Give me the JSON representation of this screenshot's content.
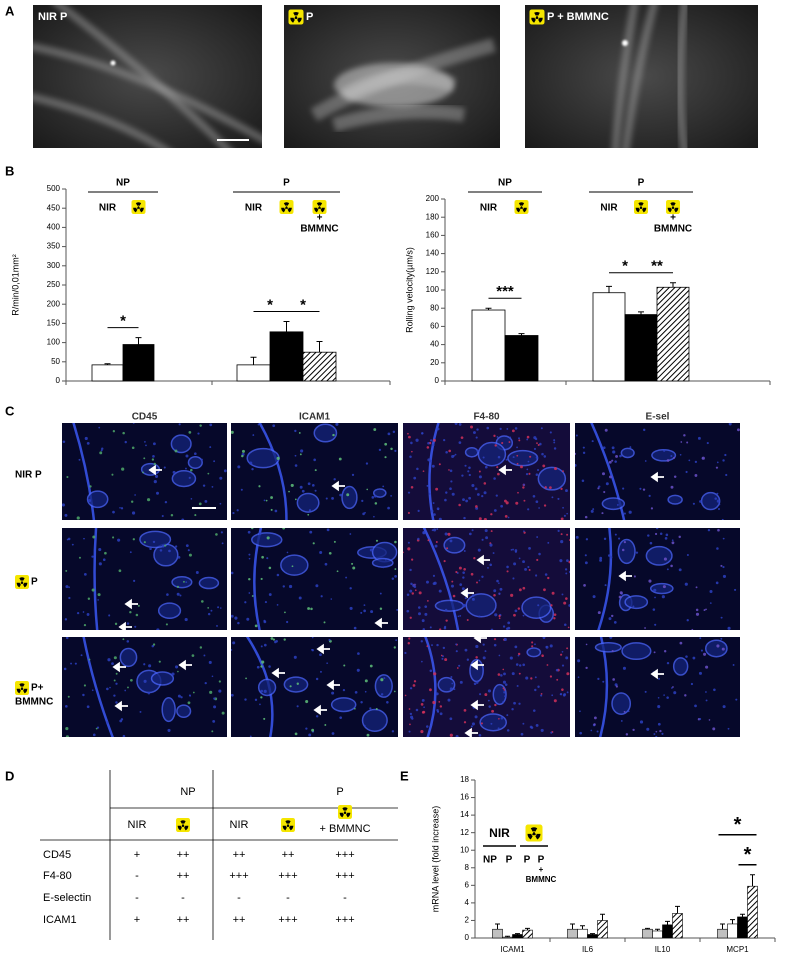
{
  "panel_labels": [
    "A",
    "B",
    "C",
    "D",
    "E"
  ],
  "panel_a": {
    "images": [
      {
        "label": "NIR P",
        "icon": false
      },
      {
        "label": "P",
        "icon": true
      },
      {
        "label": "P + BMMNC",
        "icon": true
      }
    ]
  },
  "chart_data": [
    {
      "type": "bar",
      "y_label": "R/min/0,01mm²",
      "ylim": [
        0,
        500
      ],
      "yticks": [
        0,
        50,
        100,
        150,
        200,
        250,
        300,
        350,
        400,
        450,
        500
      ],
      "groups": [
        {
          "label": "NP",
          "bar_labels": [
            "NIR",
            null
          ],
          "values": [
            42,
            95
          ],
          "errors": [
            3,
            18
          ],
          "fills": [
            "#ffffff",
            "#000000"
          ]
        },
        {
          "label": "P",
          "bar_labels": [
            "NIR",
            null,
            null
          ],
          "note": {
            "bar": 2,
            "lines": [
              "+",
              "BMMNC"
            ]
          },
          "values": [
            42,
            128,
            75
          ],
          "errors": [
            20,
            27,
            28
          ],
          "fills": [
            "#ffffff",
            "#000000",
            "hatched"
          ]
        }
      ],
      "brackets": [
        {
          "group": 0,
          "bars": [
            0,
            1
          ],
          "label": "*"
        },
        {
          "group": 1,
          "bars": [
            0,
            1
          ],
          "label": "*"
        },
        {
          "group": 1,
          "bars": [
            1,
            2
          ],
          "label": "*"
        }
      ]
    },
    {
      "type": "bar",
      "y_label": "Rolling velocity(µm/s)",
      "ylim": [
        0,
        200
      ],
      "yticks": [
        0,
        20,
        40,
        60,
        80,
        100,
        120,
        140,
        160,
        180,
        200
      ],
      "groups": [
        {
          "label": "NP",
          "bar_labels": [
            "NIR",
            null
          ],
          "values": [
            78,
            50
          ],
          "errors": [
            2,
            2
          ],
          "fills": [
            "#ffffff",
            "#000000"
          ]
        },
        {
          "label": "P",
          "bar_labels": [
            "NIR",
            null,
            null
          ],
          "note": {
            "bar": 2,
            "lines": [
              "+",
              "BMMNC"
            ]
          },
          "values": [
            97,
            73,
            103
          ],
          "errors": [
            7,
            3,
            5
          ],
          "fills": [
            "#ffffff",
            "#000000",
            "hatched"
          ]
        }
      ],
      "brackets": [
        {
          "group": 0,
          "bars": [
            0,
            1
          ],
          "label": "***"
        },
        {
          "group": 1,
          "bars": [
            0,
            1
          ],
          "label": "*"
        },
        {
          "group": 1,
          "bars": [
            1,
            2
          ],
          "label": "**"
        }
      ]
    },
    {
      "type": "bar",
      "y_label": "mRNA level (fold increase)",
      "ylim": [
        0,
        18
      ],
      "yticks": [
        0,
        2,
        4,
        6,
        8,
        10,
        12,
        14,
        16,
        18
      ],
      "categories": [
        "ICAM1",
        "IL6",
        "IL10",
        "MCP1"
      ],
      "series": [
        {
          "name": "NP",
          "fill": "#c0c0c0",
          "values": [
            1.0,
            1.0,
            1.0,
            1.0
          ],
          "errors": [
            0.6,
            0.6,
            0.1,
            0.6
          ]
        },
        {
          "name": "P",
          "fill": "#ffffff",
          "values": [
            0.1,
            1.0,
            0.8,
            1.6
          ],
          "errors": [
            0.1,
            0.4,
            0.2,
            0.5
          ]
        },
        {
          "name": "P",
          "fill": "#000000",
          "values": [
            0.4,
            0.4,
            1.5,
            2.4
          ],
          "errors": [
            0.1,
            0.1,
            0.4,
            0.3
          ]
        },
        {
          "name": "P",
          "fill": "hatched",
          "values": [
            0.9,
            2.0,
            2.8,
            5.9
          ],
          "errors": [
            0.2,
            0.7,
            0.8,
            1.3
          ]
        }
      ],
      "legend_groups": [
        {
          "label": "NIR",
          "series": [
            0,
            1
          ]
        },
        {
          "label": null,
          "series": [
            2,
            3
          ]
        }
      ],
      "note": {
        "series": 3,
        "lines": [
          "+",
          "BMMNC"
        ]
      },
      "brackets": [
        {
          "category": 3,
          "bars": [
            0,
            3
          ],
          "label": "*"
        },
        {
          "category": 3,
          "bars": [
            2,
            3
          ],
          "label": "*"
        }
      ]
    }
  ],
  "panel_c": {
    "columns": [
      "CD45",
      "ICAM1",
      "F4-80",
      "E-sel"
    ],
    "rows": [
      {
        "label": [
          "NIR P"
        ],
        "icon": false
      },
      {
        "label": [
          "P"
        ],
        "icon": true
      },
      {
        "label": [
          "P+",
          "BMMNC"
        ],
        "icon": true
      }
    ]
  },
  "panel_d": {
    "group_headers": [
      "NP",
      "P"
    ],
    "column_headers": [
      "NIR",
      null,
      "NIR",
      null,
      "+ BMMNC"
    ],
    "column_icons": [
      false,
      true,
      false,
      true,
      true
    ],
    "rows": [
      {
        "label": "CD45",
        "cells": [
          "+",
          "++",
          "++",
          "++",
          "+++"
        ]
      },
      {
        "label": "F4-80",
        "cells": [
          "-",
          "++",
          "+++",
          "+++",
          "+++"
        ]
      },
      {
        "label": "E-selectin",
        "cells": [
          "-",
          "-",
          "-",
          "-",
          "-"
        ]
      },
      {
        "label": "ICAM1",
        "cells": [
          "+",
          "++",
          "++",
          "+++",
          "+++"
        ]
      }
    ]
  }
}
